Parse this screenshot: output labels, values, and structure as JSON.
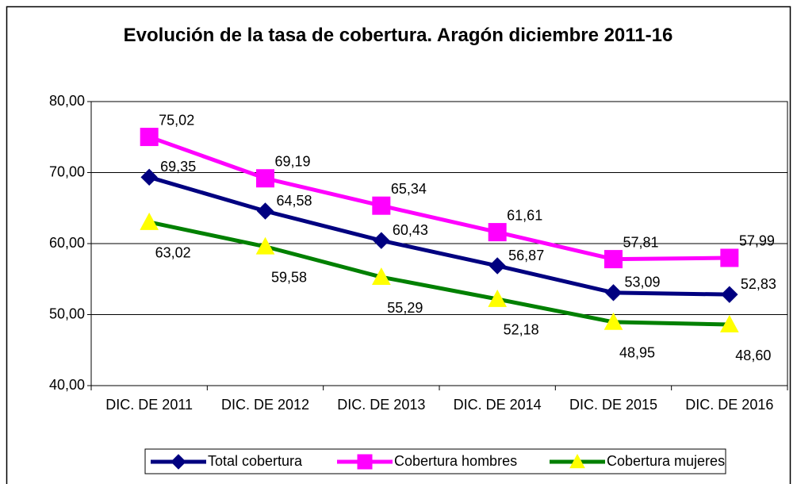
{
  "chart_data": {
    "type": "line",
    "title": "Evolución de la tasa de cobertura. Aragón diciembre 2011-16",
    "categories": [
      "DIC. DE 2011",
      "DIC. DE 2012",
      "DIC. DE 2013",
      "DIC. DE 2014",
      "DIC. DE 2015",
      "DIC. DE 2016"
    ],
    "series": [
      {
        "name": "Total cobertura",
        "color": "#000080",
        "marker": "diamond",
        "values": [
          69.35,
          64.58,
          60.43,
          56.87,
          53.09,
          52.83
        ],
        "value_labels": [
          "69,35",
          "64,58",
          "60,43",
          "56,87",
          "53,09",
          "52,83"
        ]
      },
      {
        "name": "Cobertura hombres",
        "color": "#ff00ff",
        "marker": "square",
        "values": [
          75.02,
          69.19,
          65.34,
          61.61,
          57.81,
          57.99
        ],
        "value_labels": [
          "75,02",
          "69,19",
          "65,34",
          "61,61",
          "57,81",
          "57,99"
        ]
      },
      {
        "name": "Cobertura mujeres",
        "color": "#008000",
        "marker_color": "#ffff00",
        "marker": "triangle",
        "values": [
          63.02,
          59.58,
          55.29,
          52.18,
          48.95,
          48.6
        ],
        "value_labels": [
          "63,02",
          "59,58",
          "55,29",
          "52,18",
          "48,95",
          "48,60"
        ]
      }
    ],
    "ylim": [
      40,
      80
    ],
    "yticks": [
      {
        "value": 40,
        "label": "40,00"
      },
      {
        "value": 50,
        "label": "50,00"
      },
      {
        "value": 60,
        "label": "60,00"
      },
      {
        "value": 70,
        "label": "70,00"
      },
      {
        "value": 80,
        "label": "80,00"
      }
    ],
    "grid": true,
    "legend": "bottom"
  }
}
